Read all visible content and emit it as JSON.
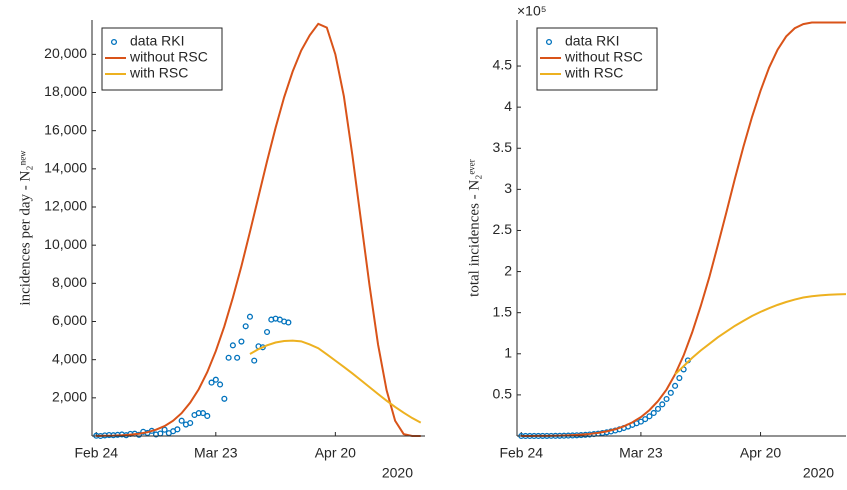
{
  "chart_data": [
    {
      "type": "line",
      "ylabel": "incidences per day - N₂ⁿᵉʷ",
      "x_year_label": "2020",
      "xlim": [
        "2020-02-23",
        "2020-05-11"
      ],
      "xticks": [
        {
          "value": "2020-02-24",
          "label": "Feb 24"
        },
        {
          "value": "2020-03-23",
          "label": "Mar 23"
        },
        {
          "value": "2020-04-20",
          "label": "Apr 20"
        }
      ],
      "ylim": [
        0,
        21800
      ],
      "yticks": [
        {
          "value": 2000,
          "label": "2,000"
        },
        {
          "value": 4000,
          "label": "4,000"
        },
        {
          "value": 6000,
          "label": "6,000"
        },
        {
          "value": 8000,
          "label": "8,000"
        },
        {
          "value": 10000,
          "label": "10,000"
        },
        {
          "value": 12000,
          "label": "12,000"
        },
        {
          "value": 14000,
          "label": "14,000"
        },
        {
          "value": 16000,
          "label": "16,000"
        },
        {
          "value": 18000,
          "label": "18,000"
        },
        {
          "value": 20000,
          "label": "20,000"
        }
      ],
      "legend": "upper left",
      "series": [
        {
          "name": "data RKI",
          "color": "#0072bd",
          "style": "markers",
          "x": [
            "2020-02-24",
            "2020-02-25",
            "2020-02-26",
            "2020-02-27",
            "2020-02-28",
            "2020-02-29",
            "2020-03-01",
            "2020-03-02",
            "2020-03-03",
            "2020-03-04",
            "2020-03-05",
            "2020-03-06",
            "2020-03-07",
            "2020-03-08",
            "2020-03-09",
            "2020-03-10",
            "2020-03-11",
            "2020-03-12",
            "2020-03-13",
            "2020-03-14",
            "2020-03-15",
            "2020-03-16",
            "2020-03-17",
            "2020-03-18",
            "2020-03-19",
            "2020-03-20",
            "2020-03-21",
            "2020-03-22",
            "2020-03-23",
            "2020-03-24",
            "2020-03-25",
            "2020-03-26",
            "2020-03-27",
            "2020-03-28",
            "2020-03-29",
            "2020-03-30",
            "2020-03-31",
            "2020-04-01",
            "2020-04-02",
            "2020-04-03",
            "2020-04-04",
            "2020-04-05",
            "2020-04-06",
            "2020-04-07",
            "2020-04-08",
            "2020-04-09"
          ],
          "values": [
            16,
            0,
            30,
            50,
            40,
            60,
            80,
            40,
            110,
            120,
            60,
            220,
            160,
            270,
            80,
            130,
            330,
            150,
            250,
            350,
            800,
            600,
            680,
            1100,
            1200,
            1200,
            1050,
            2800,
            2950,
            2700,
            1950,
            4100,
            4750,
            4100,
            4950,
            5750,
            6250,
            3950,
            4700,
            4650,
            5450,
            6100,
            6150,
            6100,
            6000,
            5950
          ]
        },
        {
          "name": "without RSC",
          "color": "#d95319",
          "style": "line",
          "x": [
            "2020-02-24",
            "2020-02-26",
            "2020-02-28",
            "2020-03-01",
            "2020-03-03",
            "2020-03-05",
            "2020-03-07",
            "2020-03-09",
            "2020-03-11",
            "2020-03-13",
            "2020-03-15",
            "2020-03-17",
            "2020-03-19",
            "2020-03-21",
            "2020-03-23",
            "2020-03-25",
            "2020-03-27",
            "2020-03-29",
            "2020-03-31",
            "2020-04-02",
            "2020-04-04",
            "2020-04-06",
            "2020-04-08",
            "2020-04-10",
            "2020-04-12",
            "2020-04-14",
            "2020-04-16",
            "2020-04-18",
            "2020-04-20",
            "2020-04-22",
            "2020-04-24",
            "2020-04-26",
            "2020-04-28",
            "2020-04-30",
            "2020-05-02",
            "2020-05-04",
            "2020-05-06",
            "2020-05-08",
            "2020-05-10"
          ],
          "values": [
            0,
            10,
            20,
            40,
            70,
            120,
            200,
            330,
            520,
            800,
            1200,
            1750,
            2450,
            3350,
            4450,
            5750,
            7250,
            8900,
            10700,
            12550,
            14400,
            16150,
            17750,
            19100,
            20200,
            21000,
            21600,
            21400,
            20000,
            17800,
            14700,
            11300,
            7900,
            4800,
            2400,
            800,
            100,
            0,
            0
          ]
        },
        {
          "name": "with RSC",
          "color": "#edb120",
          "style": "line",
          "x": [
            "2020-02-24",
            "2020-02-26",
            "2020-02-28",
            "2020-03-01",
            "2020-03-03",
            "2020-03-05",
            "2020-03-07",
            "2020-03-09",
            "2020-03-11",
            "2020-03-13",
            "2020-03-15",
            "2020-03-17",
            "2020-03-19",
            "2020-03-21",
            "2020-03-23",
            "2020-03-25",
            "2020-03-27",
            "2020-03-29",
            "2020-03-31",
            "2020-04-02",
            "2020-04-04",
            "2020-04-06",
            "2020-04-08",
            "2020-04-10",
            "2020-04-12",
            "2020-04-14",
            "2020-04-16",
            "2020-04-18",
            "2020-04-20",
            "2020-04-22",
            "2020-04-24",
            "2020-04-26",
            "2020-04-28",
            "2020-04-30",
            "2020-05-02",
            "2020-05-04",
            "2020-05-06",
            "2020-05-08",
            "2020-05-10"
          ],
          "values": [
            null,
            null,
            null,
            null,
            null,
            null,
            null,
            null,
            null,
            null,
            null,
            null,
            null,
            null,
            null,
            null,
            null,
            null,
            4300,
            4550,
            4750,
            4900,
            4980,
            5000,
            4960,
            4800,
            4600,
            4280,
            3950,
            3620,
            3280,
            2920,
            2560,
            2200,
            1850,
            1520,
            1220,
            940,
            700
          ]
        }
      ]
    },
    {
      "type": "line",
      "ylabel": "total incidences - N₂ᵉᵛᵉʳ",
      "y_exponent_label": "×10⁵",
      "x_year_label": "2020",
      "xlim": [
        "2020-02-23",
        "2020-05-10"
      ],
      "xticks": [
        {
          "value": "2020-02-24",
          "label": "Feb 24"
        },
        {
          "value": "2020-03-23",
          "label": "Mar 23"
        },
        {
          "value": "2020-04-20",
          "label": "Apr 20"
        }
      ],
      "ylim": [
        0,
        506000
      ],
      "yticks": [
        {
          "value": 50000,
          "label": "0.5"
        },
        {
          "value": 100000,
          "label": "1"
        },
        {
          "value": 150000,
          "label": "1.5"
        },
        {
          "value": 200000,
          "label": "2"
        },
        {
          "value": 250000,
          "label": "2.5"
        },
        {
          "value": 300000,
          "label": "3"
        },
        {
          "value": 350000,
          "label": "3.5"
        },
        {
          "value": 400000,
          "label": "4"
        },
        {
          "value": 450000,
          "label": "4.5"
        }
      ],
      "legend": "upper left",
      "series": [
        {
          "name": "data RKI",
          "color": "#0072bd",
          "style": "markers",
          "x": [
            "2020-02-24",
            "2020-02-25",
            "2020-02-26",
            "2020-02-27",
            "2020-02-28",
            "2020-02-29",
            "2020-03-01",
            "2020-03-02",
            "2020-03-03",
            "2020-03-04",
            "2020-03-05",
            "2020-03-06",
            "2020-03-07",
            "2020-03-08",
            "2020-03-09",
            "2020-03-10",
            "2020-03-11",
            "2020-03-12",
            "2020-03-13",
            "2020-03-14",
            "2020-03-15",
            "2020-03-16",
            "2020-03-17",
            "2020-03-18",
            "2020-03-19",
            "2020-03-20",
            "2020-03-21",
            "2020-03-22",
            "2020-03-23",
            "2020-03-24",
            "2020-03-25",
            "2020-03-26",
            "2020-03-27",
            "2020-03-28",
            "2020-03-29",
            "2020-03-30",
            "2020-03-31",
            "2020-04-01",
            "2020-04-02",
            "2020-04-03"
          ],
          "values": [
            16,
            16,
            20,
            30,
            50,
            80,
            110,
            150,
            200,
            260,
            350,
            480,
            650,
            850,
            1100,
            1400,
            1800,
            2300,
            2900,
            3600,
            4500,
            5500,
            6700,
            8100,
            9700,
            11500,
            13500,
            15500,
            17500,
            20500,
            24000,
            28000,
            33000,
            38500,
            45000,
            52500,
            61000,
            70500,
            81000,
            92000
          ]
        },
        {
          "name": "without RSC",
          "color": "#d95319",
          "style": "line",
          "x": [
            "2020-02-24",
            "2020-02-26",
            "2020-02-28",
            "2020-03-01",
            "2020-03-03",
            "2020-03-05",
            "2020-03-07",
            "2020-03-09",
            "2020-03-11",
            "2020-03-13",
            "2020-03-15",
            "2020-03-17",
            "2020-03-19",
            "2020-03-21",
            "2020-03-23",
            "2020-03-25",
            "2020-03-27",
            "2020-03-29",
            "2020-03-31",
            "2020-04-02",
            "2020-04-04",
            "2020-04-06",
            "2020-04-08",
            "2020-04-10",
            "2020-04-12",
            "2020-04-14",
            "2020-04-16",
            "2020-04-18",
            "2020-04-20",
            "2020-04-22",
            "2020-04-24",
            "2020-04-26",
            "2020-04-28",
            "2020-04-30",
            "2020-05-02",
            "2020-05-04",
            "2020-05-06",
            "2020-05-08",
            "2020-05-10"
          ],
          "values": [
            0,
            50,
            100,
            200,
            350,
            600,
            1000,
            1600,
            2500,
            3800,
            5600,
            8200,
            11800,
            16600,
            23000,
            31500,
            42500,
            56500,
            75000,
            98000,
            126000,
            158000,
            193000,
            232000,
            272000,
            313000,
            352000,
            388000,
            420000,
            448000,
            470000,
            486000,
            496000,
            501000,
            503000,
            503000,
            503000,
            503000,
            503000
          ]
        },
        {
          "name": "with RSC",
          "color": "#edb120",
          "style": "line",
          "x": [
            "2020-02-24",
            "2020-02-26",
            "2020-02-28",
            "2020-03-01",
            "2020-03-03",
            "2020-03-05",
            "2020-03-07",
            "2020-03-09",
            "2020-03-11",
            "2020-03-13",
            "2020-03-15",
            "2020-03-17",
            "2020-03-19",
            "2020-03-21",
            "2020-03-23",
            "2020-03-25",
            "2020-03-27",
            "2020-03-29",
            "2020-03-31",
            "2020-04-02",
            "2020-04-04",
            "2020-04-06",
            "2020-04-08",
            "2020-04-10",
            "2020-04-12",
            "2020-04-14",
            "2020-04-16",
            "2020-04-18",
            "2020-04-20",
            "2020-04-22",
            "2020-04-24",
            "2020-04-26",
            "2020-04-28",
            "2020-04-30",
            "2020-05-02",
            "2020-05-04",
            "2020-05-06",
            "2020-05-08",
            "2020-05-10"
          ],
          "values": [
            null,
            null,
            null,
            null,
            null,
            null,
            null,
            null,
            null,
            null,
            null,
            null,
            null,
            null,
            null,
            null,
            null,
            null,
            75000,
            85000,
            95000,
            104000,
            112000,
            120000,
            127000,
            134000,
            140000,
            146000,
            151000,
            155500,
            159500,
            163000,
            166000,
            168500,
            170000,
            171000,
            171800,
            172300,
            172600
          ]
        }
      ]
    }
  ]
}
